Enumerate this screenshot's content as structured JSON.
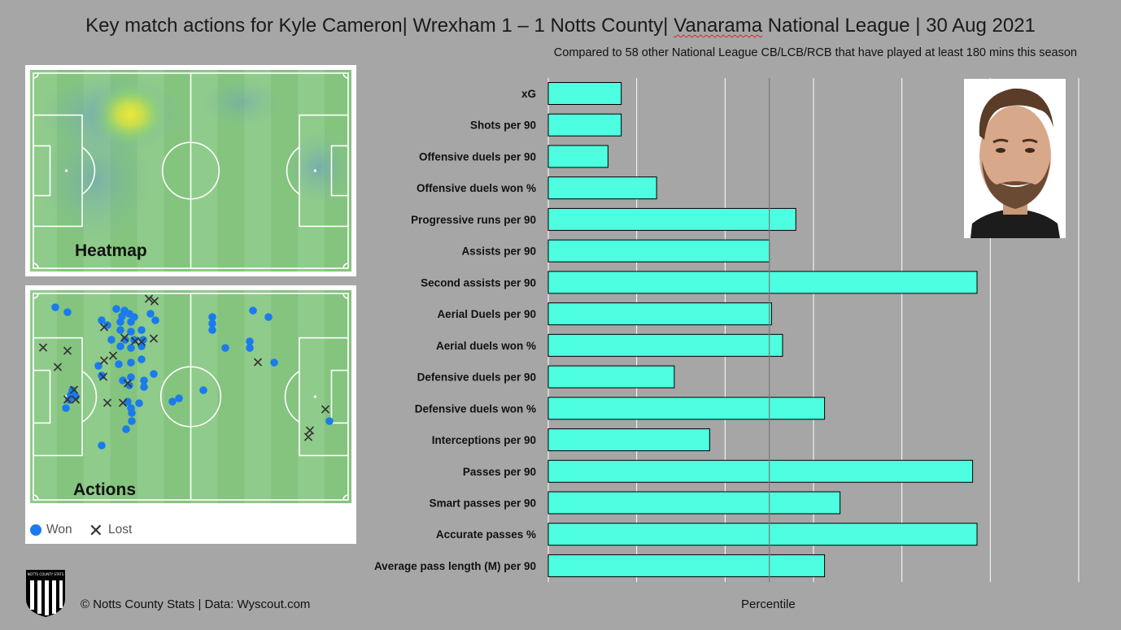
{
  "header": {
    "title_pre": "Key match actions for Kyle Cameron| Wrexham 1 – 1 Notts County| ",
    "title_underlined": "Vanarama",
    "title_post": " National League | 30 Aug 2021",
    "subtitle": "Compared to 58 other National League CB/LCB/RCB that have played at least 180 mins this season"
  },
  "heatmap": {
    "label": "Heatmap"
  },
  "actions": {
    "label": "Actions",
    "legend_won": "Won",
    "legend_lost": "Lost"
  },
  "footer": {
    "credit": "© Notts County Stats | Data: Wyscout.com",
    "logo_text": "NOTTS COUNTY STATS"
  },
  "colors": {
    "background": "#a6a6a6",
    "bar": "#4dffe0",
    "won": "#1a7bef",
    "pitch_light": "#8fcb8a",
    "pitch_dark": "#84c47e"
  },
  "chart_data": {
    "type": "bar",
    "orientation": "horizontal",
    "title": "Key match actions for Kyle Cameron",
    "xlabel": "Percentile",
    "ylabel": "",
    "xlim": [
      0,
      120
    ],
    "categories": [
      "xG",
      "Shots per 90",
      "Offensive duels per 90",
      "Offensive duels won %",
      "Progressive runs per 90",
      "Assists per 90",
      "Second assists per 90",
      "Aerial Duels per 90",
      "Aerial duels won %",
      "Defensive duels per 90",
      "Defensive duels won %",
      "Interceptions per 90",
      "Passes per 90",
      "Smart passes per 90",
      "Accurate passes %",
      "Average pass length (M) per 90"
    ],
    "values": [
      16.5,
      16.5,
      13.5,
      24.5,
      56,
      50,
      97,
      50.5,
      53,
      28.5,
      62.5,
      36.5,
      96,
      66,
      97,
      62.5
    ],
    "reference_line": 50,
    "grid": true
  }
}
